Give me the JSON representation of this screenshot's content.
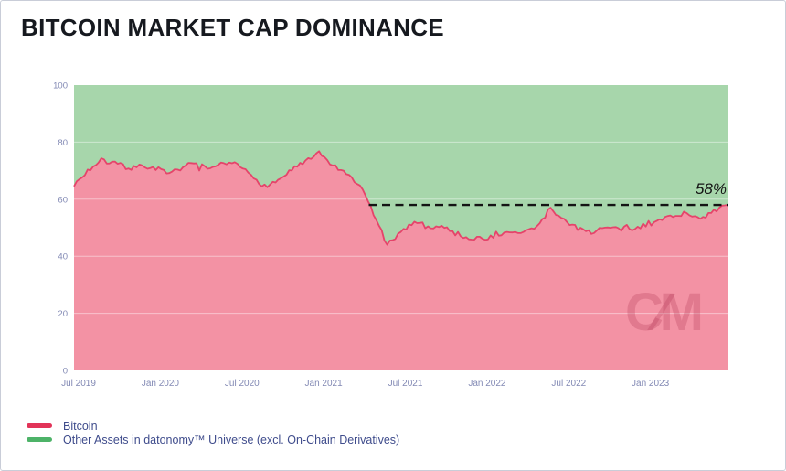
{
  "header": {
    "title": "BITCOIN MARKET CAP DOMINANCE"
  },
  "theme": {
    "background": "#ffffff",
    "card_border": "#c9cdd8",
    "title_color": "#16191f",
    "axis_label_color": "#8289b4",
    "grid_color": "rgba(255,255,255,0.45)",
    "legend_text_color": "#3f4c8c",
    "dashed_line_color": "#141414",
    "annotation_color": "#141414",
    "watermark_color": "rgba(186,62,94,0.30)"
  },
  "chart_data": {
    "type": "area",
    "title": "BITCOIN MARKET CAP DOMINANCE",
    "stacked_to_100": true,
    "ylim": [
      0,
      100
    ],
    "y_ticks": [
      100,
      80,
      60,
      40,
      20,
      0
    ],
    "grid": "horizontal every 20, no vertical grid",
    "legend_position": "bottom-left",
    "watermark": "C∕M",
    "x": [
      "2019-07",
      "2019-08",
      "2019-09",
      "2019-10",
      "2019-11",
      "2019-12",
      "2020-01",
      "2020-02",
      "2020-03",
      "2020-04",
      "2020-05",
      "2020-06",
      "2020-07",
      "2020-08",
      "2020-09",
      "2020-10",
      "2020-11",
      "2020-12",
      "2021-01",
      "2021-02",
      "2021-03",
      "2021-04",
      "2021-05",
      "2021-06",
      "2021-07",
      "2021-08",
      "2021-09",
      "2021-10",
      "2021-11",
      "2021-12",
      "2022-01",
      "2022-02",
      "2022-03",
      "2022-04",
      "2022-05",
      "2022-06",
      "2022-07",
      "2022-08",
      "2022-09",
      "2022-10",
      "2022-11",
      "2022-12",
      "2023-01",
      "2023-02",
      "2023-03",
      "2023-04",
      "2023-05",
      "2023-06",
      "2023-07"
    ],
    "x_ticks": [
      {
        "label": "Jul 2019",
        "month_index": 0
      },
      {
        "label": "Jan 2020",
        "month_index": 6
      },
      {
        "label": "Jul 2020",
        "month_index": 12
      },
      {
        "label": "Jan 2021",
        "month_index": 18
      },
      {
        "label": "Jul 2021",
        "month_index": 24
      },
      {
        "label": "Jan 2022",
        "month_index": 30
      },
      {
        "label": "Jul 2022",
        "month_index": 36
      },
      {
        "label": "Jan 2023",
        "month_index": 42
      }
    ],
    "series": [
      {
        "name": "Bitcoin",
        "line_color": "#e5446a",
        "fill_color": "#f392a4",
        "values": [
          64.5,
          70,
          73.5,
          72.5,
          71,
          71.5,
          71,
          68.5,
          71.5,
          72.5,
          70,
          72.5,
          72,
          68.5,
          64.5,
          66.5,
          70.5,
          73,
          76,
          72,
          68.5,
          65,
          55,
          44,
          48,
          52.5,
          50,
          51,
          48,
          46.5,
          46,
          47.5,
          48,
          48.5,
          50,
          57,
          52.5,
          50,
          48.5,
          50,
          49.5,
          49.5,
          51,
          52.5,
          54.5,
          55,
          53.5,
          55.5,
          58
        ]
      },
      {
        "name": "Other Assets in datonomy™ Universe (excl. On-Chain Derivatives)",
        "line_color": "#4db368",
        "fill_color": "#a7d6ab",
        "values": [
          35.5,
          30,
          26.5,
          27.5,
          29,
          28.5,
          29,
          31.5,
          28.5,
          27.5,
          30,
          27.5,
          28,
          31.5,
          35.5,
          33.5,
          29.5,
          27,
          24,
          28,
          31.5,
          35,
          45,
          56,
          52,
          47.5,
          50,
          49,
          52,
          53.5,
          54,
          52.5,
          52,
          51.5,
          50,
          43,
          47.5,
          50,
          51.5,
          50,
          50.5,
          50.5,
          49,
          47.5,
          45.5,
          45,
          46.5,
          44.5,
          42
        ]
      }
    ],
    "annotation": {
      "text": "58%",
      "value": 58,
      "line": "dashed",
      "start_month_index": 21.65
    }
  },
  "legend": {
    "items": [
      {
        "label": "Bitcoin",
        "color": "#e23358"
      },
      {
        "label": "Other Assets in datonomy™ Universe (excl. On-Chain Derivatives)",
        "color": "#4db368"
      }
    ]
  }
}
